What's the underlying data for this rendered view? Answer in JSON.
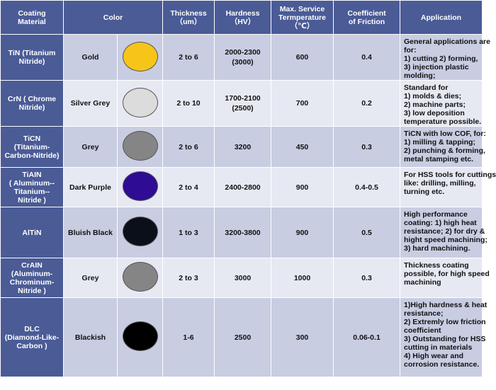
{
  "headers": {
    "material": [
      "Coating",
      "Material"
    ],
    "color": "Color",
    "thickness": [
      "Thickness",
      "（um）"
    ],
    "hardness": [
      "Hardness",
      "（HV）"
    ],
    "temperature": [
      "Max. Service",
      "Termperature",
      "（℃）"
    ],
    "friction": [
      "Coefficient",
      "of Friction"
    ],
    "application": "Application"
  },
  "rows": [
    {
      "material": [
        "TiN (Titanium",
        "Nitride)"
      ],
      "color": "Gold",
      "swatch": "#f7c518",
      "thickness": "2 to 6",
      "hardness": [
        "2000-2300",
        "(3000)"
      ],
      "temperature": "600",
      "friction": "0.4",
      "application": [
        "General applications are",
        "for:",
        "1) cutting   2) forming,",
        "3) injection plastic",
        "molding;"
      ]
    },
    {
      "material": [
        "CrN ( Chrome",
        "Nitride)"
      ],
      "color": "Silver Grey",
      "swatch": "#dcdcdc",
      "thickness": "2 to 10",
      "hardness": [
        "1700-2100",
        "(2500)"
      ],
      "temperature": "700",
      "friction": "0.2",
      "application": [
        "Standard for",
        "1) molds & dies;",
        "2) machine parts;",
        "3) low deposition",
        "temperature possible."
      ]
    },
    {
      "material": [
        "TiCN",
        "(Titanium-",
        "Carbon-Nitride)"
      ],
      "color": "Grey",
      "swatch": "#858585",
      "thickness": "2 to 6",
      "hardness": [
        "3200"
      ],
      "temperature": "450",
      "friction": "0.3",
      "application": [
        "TiCN with low COF, for:",
        "1) milling & tapping;",
        "2) punching & forming,",
        "metal stamping etc."
      ]
    },
    {
      "material": [
        "TiAIN",
        "( Aluminum--",
        "Titanium--",
        "Nitride )"
      ],
      "color": "Dark Purple",
      "swatch": "#2e0c94",
      "thickness": "2 to 4",
      "hardness": [
        "2400-2800"
      ],
      "temperature": "900",
      "friction": "0.4-0.5",
      "application": [
        "For HSS tools for cuttings",
        "like: drilling, milling,",
        "turning etc."
      ]
    },
    {
      "material": [
        "AlTiN"
      ],
      "color": "Bluish Black",
      "swatch": "#0a0f1a",
      "thickness": "1 to 3",
      "hardness": [
        "3200-3800"
      ],
      "temperature": "900",
      "friction": "0.5",
      "application": [
        " High performance",
        "coating: 1) high heat",
        "resistance; 2) for dry &",
        "hight speed machining;",
        "3) hard machining."
      ]
    },
    {
      "material": [
        "CrAIN",
        "(Aluminum-",
        "Chrominum-",
        "Nitride )"
      ],
      "color": "Grey",
      "swatch": "#858585",
      "thickness": "2 to 3",
      "hardness": [
        "3000"
      ],
      "temperature": "1000",
      "friction": "0.3",
      "application": [
        "Thickness coating",
        "possible, for high speed",
        "machining"
      ]
    },
    {
      "material": [
        "DLC",
        "(Diamond-Like-",
        "Carbon )"
      ],
      "color": "Blackish",
      "swatch": "#000000",
      "thickness": "1-6",
      "hardness": [
        "2500"
      ],
      "temperature": "300",
      "friction": "0.06-0.1",
      "application": [
        "1)High hardness & heat",
        "resistance;",
        "2) Extremly low friction",
        "coefficient",
        "3) Outstanding for HSS",
        "cutting in materials",
        "4) High wear and",
        "corrosion resistance."
      ]
    }
  ]
}
